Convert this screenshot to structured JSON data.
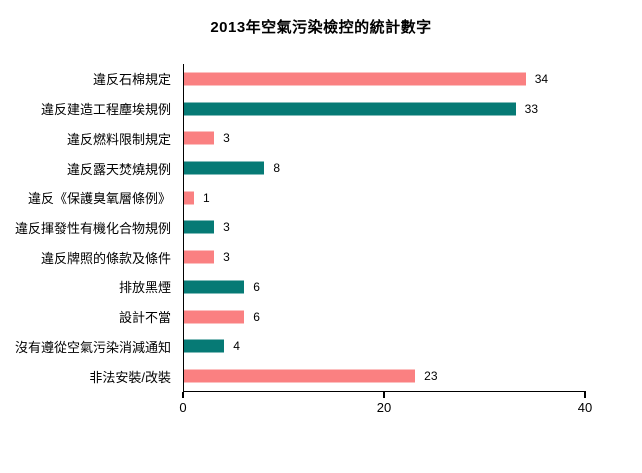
{
  "chart_data": {
    "type": "bar",
    "orientation": "horizontal",
    "title": "2013年空氣污染檢控的統計數字",
    "categories": [
      "違反石棉規定",
      "違反建造工程塵埃規例",
      "違反燃料限制規定",
      "違反露天焚燒規例",
      "違反《保護臭氧層條例》",
      "違反揮發性有機化合物規例",
      "違反牌照的條款及條件",
      "排放黑煙",
      "設計不當",
      "沒有遵從空氣污染消減通知",
      "非法安裝/改裝"
    ],
    "values": [
      34,
      33,
      3,
      8,
      1,
      3,
      3,
      6,
      6,
      4,
      23
    ],
    "value_labels_shown": true,
    "xlim": [
      0,
      40
    ],
    "x_ticks": [
      0,
      20,
      40
    ],
    "xlabel": "",
    "ylabel": "",
    "grid": false,
    "legend": false,
    "colors": {
      "bar_pattern": [
        "#fa8081",
        "#067a75"
      ],
      "axis": "#000000",
      "text": "#000000",
      "background": "#ffffff"
    }
  }
}
